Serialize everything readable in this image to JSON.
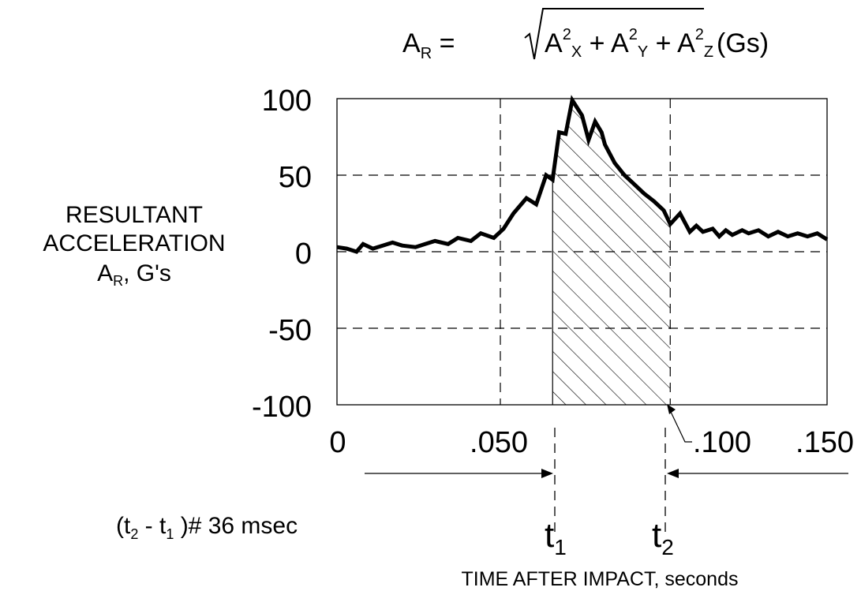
{
  "formula": {
    "lhs_main": "A",
    "lhs_sub": "R",
    "equals": " = ",
    "term_x_base": "A",
    "term_x_sup": "2",
    "term_x_sub": "X",
    "plus1": " + ",
    "term_y_base": "A",
    "term_y_sup": "2",
    "term_y_sub": "Y",
    "plus2": " + ",
    "term_z_base": "A",
    "term_z_sup": "2",
    "term_z_sub": "Z",
    "units": "(Gs)"
  },
  "ylabel": {
    "line1": "RESULTANT",
    "line2": "ACCELERATION",
    "line3_main": "A",
    "line3_sub": "R",
    "line3_rest": ", G's"
  },
  "ytick_labels": [
    "100",
    "50",
    "0",
    "-50",
    "-100"
  ],
  "xtick_labels": [
    "0",
    ".050",
    ".100",
    ".150"
  ],
  "t1": {
    "main": "t",
    "sub": "1"
  },
  "t2": {
    "main": "t",
    "sub": "2"
  },
  "duration": {
    "open": "(t",
    "sub1": "2",
    "mid": " - t",
    "sub2": "1",
    "close": " )# 36 msec"
  },
  "xlabel": "TIME AFTER IMPACT, seconds",
  "colors": {
    "line": "#000000",
    "grid": "#000000",
    "background": "#ffffff"
  },
  "chart_data": {
    "type": "line",
    "xlabel": "TIME AFTER IMPACT, seconds",
    "ylabel": "RESULTANT ACCELERATION A_R, G's",
    "xlim": [
      0,
      0.15
    ],
    "ylim": [
      -100,
      100
    ],
    "xticks": [
      0,
      0.05,
      0.1,
      0.15
    ],
    "yticks": [
      -100,
      -50,
      0,
      50,
      100
    ],
    "grid": "dashed",
    "shaded_interval": [
      0.066,
      0.102
    ],
    "t1": 0.066,
    "t2": 0.102,
    "duration_ms": 36,
    "series": [
      {
        "x": [
          0,
          0.003,
          0.006,
          0.008,
          0.011,
          0.014,
          0.017,
          0.02,
          0.024,
          0.027,
          0.03,
          0.034,
          0.037,
          0.041,
          0.044,
          0.048,
          0.051,
          0.054,
          0.058,
          0.061,
          0.064,
          0.066,
          0.068,
          0.07,
          0.072,
          0.075,
          0.077,
          0.079,
          0.081,
          0.082,
          0.085,
          0.088,
          0.091,
          0.094,
          0.097,
          0.1,
          0.102,
          0.105,
          0.108,
          0.11,
          0.112,
          0.115,
          0.117,
          0.119,
          0.121,
          0.124,
          0.126,
          0.129,
          0.132,
          0.135,
          0.138,
          0.141,
          0.144,
          0.147,
          0.15
        ],
        "y": [
          3,
          2,
          0,
          5,
          2,
          4,
          6,
          4,
          3,
          5,
          7,
          5,
          9,
          7,
          12,
          9,
          15,
          25,
          35,
          31,
          50,
          47,
          78,
          77,
          99,
          89,
          73,
          85,
          78,
          70,
          58,
          50,
          44,
          38,
          33,
          27,
          18,
          25,
          13,
          17,
          13,
          15,
          10,
          14,
          11,
          14,
          12,
          14,
          10,
          13,
          10,
          12,
          10,
          12,
          8
        ]
      }
    ]
  }
}
